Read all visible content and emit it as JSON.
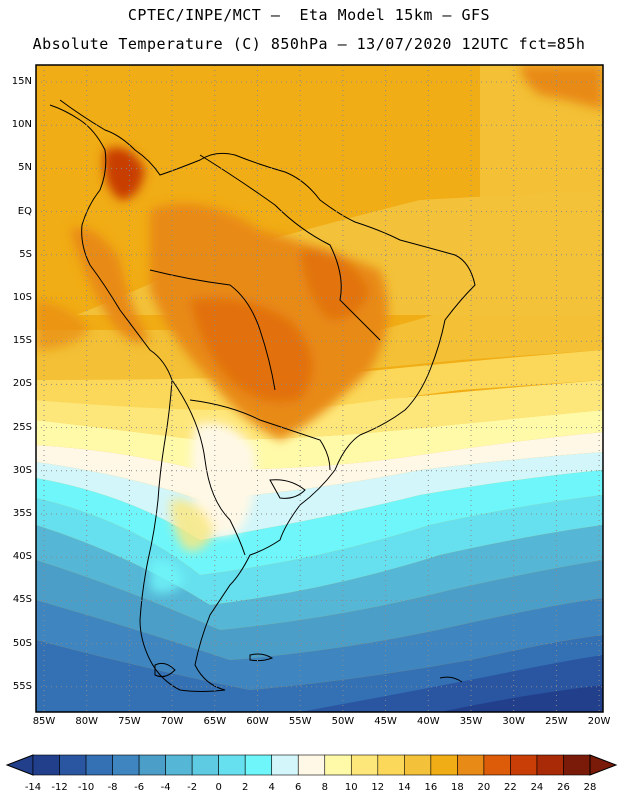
{
  "header": {
    "line1": "CPTEC/INPE/MCT —  Eta Model 15km — GFS",
    "line2": "Absolute Temperature (C) 850hPa — 13/07/2020 12UTC fct=85h"
  },
  "axes": {
    "lat_labels": [
      "15N",
      "10N",
      "5N",
      "EQ",
      "5S",
      "10S",
      "15S",
      "20S",
      "25S",
      "30S",
      "35S",
      "40S",
      "45S",
      "50S",
      "55S"
    ],
    "lon_labels": [
      "85W",
      "80W",
      "75W",
      "70W",
      "65W",
      "60W",
      "55W",
      "50W",
      "45W",
      "40W",
      "35W",
      "30W",
      "25W",
      "20W"
    ]
  },
  "colorbar": {
    "labels": [
      "-14",
      "-12",
      "-10",
      "-8",
      "-6",
      "-4",
      "-2",
      "0",
      "2",
      "4",
      "6",
      "8",
      "10",
      "12",
      "14",
      "16",
      "18",
      "20",
      "22",
      "24",
      "26",
      "28"
    ],
    "colors": [
      "#223f8c",
      "#2a55a0",
      "#3370b4",
      "#3f86c0",
      "#4a9ec8",
      "#55b6d6",
      "#5fcbe2",
      "#66e0ee",
      "#6ff6fa",
      "#d2f6fa",
      "#fff8e6",
      "#fffaa8",
      "#fee77a",
      "#fbd85a",
      "#f3c23a",
      "#f1ad15",
      "#e88a16",
      "#dc5c0a",
      "#c83e06",
      "#a82a06",
      "#7a1a08"
    ],
    "under_color": "#223f8c",
    "over_color": "#7a1a08"
  }
}
